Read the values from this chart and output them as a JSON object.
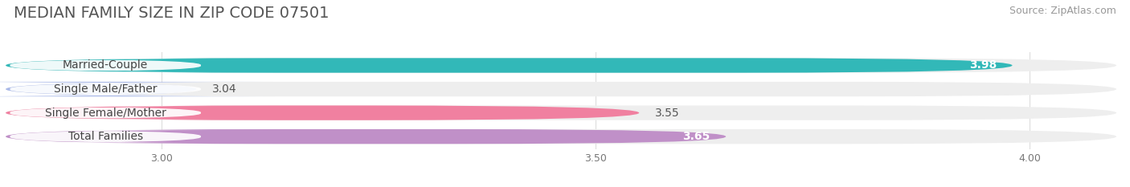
{
  "title": "MEDIAN FAMILY SIZE IN ZIP CODE 07501",
  "source": "Source: ZipAtlas.com",
  "categories": [
    "Married-Couple",
    "Single Male/Father",
    "Single Female/Mother",
    "Total Families"
  ],
  "values": [
    3.98,
    3.04,
    3.55,
    3.65
  ],
  "bar_colors": [
    "#32b8b8",
    "#a8b8e8",
    "#f080a0",
    "#c090c8"
  ],
  "bar_bg_colors": [
    "#eeeeee",
    "#eeeeee",
    "#eeeeee",
    "#eeeeee"
  ],
  "value_inside": [
    true,
    false,
    false,
    true
  ],
  "value_label_colors": [
    "#ffffff",
    "#555555",
    "#555555",
    "#ffffff"
  ],
  "xlim_left": 2.82,
  "xlim_right": 4.1,
  "xticks": [
    3.0,
    3.5,
    4.0
  ],
  "xtick_labels": [
    "3.00",
    "3.50",
    "4.00"
  ],
  "values_display": [
    "3.98",
    "3.04",
    "3.55",
    "3.65"
  ],
  "bg_color": "#ffffff",
  "title_fontsize": 14,
  "source_fontsize": 9,
  "bar_label_fontsize": 10,
  "value_fontsize": 10,
  "bar_height": 0.62,
  "bar_gap": 0.15
}
